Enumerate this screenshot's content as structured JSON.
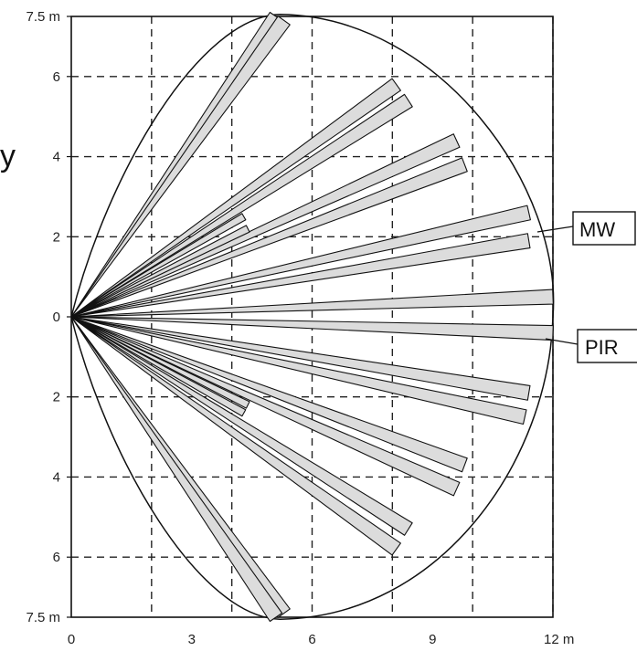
{
  "chart": {
    "y_ticks": [
      {
        "value": 7.5,
        "label": "7.5 m"
      },
      {
        "value": 6,
        "label": "6"
      },
      {
        "value": 4,
        "label": "4"
      },
      {
        "value": 2,
        "label": "2"
      },
      {
        "value": 0,
        "label": "0"
      },
      {
        "value": -2,
        "label": "2"
      },
      {
        "value": -4,
        "label": "4"
      },
      {
        "value": -6,
        "label": "6"
      },
      {
        "value": -7.5,
        "label": "7.5 m"
      }
    ],
    "x_ticks": [
      {
        "value": 0,
        "label": "0"
      },
      {
        "value": 3,
        "label": "3"
      },
      {
        "value": 6,
        "label": "6"
      },
      {
        "value": 9,
        "label": "9"
      },
      {
        "value": 12,
        "label": "12 m"
      }
    ],
    "callouts": {
      "mw": "MW",
      "pir": "PIR"
    },
    "stray_glyph": "y",
    "colors": {
      "beam_fill": "#dcdcdc",
      "line": "#111111",
      "grid": "#222222"
    }
  },
  "chart_data": {
    "type": "diagram",
    "xlim": [
      0,
      12
    ],
    "ylim": [
      -7.5,
      7.5
    ],
    "grid_x": [
      2,
      4,
      6,
      8,
      10,
      12
    ],
    "grid_y": [
      -6,
      -4,
      -2,
      2,
      4,
      6
    ],
    "coverage_outline": "detection area from origin reaching 12 m forward and 7.5 m to each side",
    "beam_end_points": [
      {
        "x": 5.1,
        "y": 7.5
      },
      {
        "x": 5.3,
        "y": 7.4
      },
      {
        "x": 8.1,
        "y": 5.8
      },
      {
        "x": 8.4,
        "y": 5.4
      },
      {
        "x": 9.6,
        "y": 4.4
      },
      {
        "x": 9.8,
        "y": 3.8
      },
      {
        "x": 11.4,
        "y": 2.6
      },
      {
        "x": 11.4,
        "y": 1.9
      },
      {
        "x": 12,
        "y": 0.5
      },
      {
        "x": 12,
        "y": -0.4
      },
      {
        "x": 11.4,
        "y": -1.9
      },
      {
        "x": 11.3,
        "y": -2.5
      },
      {
        "x": 9.8,
        "y": -3.7
      },
      {
        "x": 9.6,
        "y": -4.3
      },
      {
        "x": 8.4,
        "y": -5.3
      },
      {
        "x": 8.1,
        "y": -5.8
      },
      {
        "x": 5.3,
        "y": -7.4
      },
      {
        "x": 5.1,
        "y": -7.5
      }
    ],
    "short_beam_end_points": [
      {
        "x": 4.3,
        "y": 2.5
      },
      {
        "x": 4.4,
        "y": 2.2
      },
      {
        "x": 4.3,
        "y": -2.4
      },
      {
        "x": 4.4,
        "y": -2.2
      }
    ]
  }
}
